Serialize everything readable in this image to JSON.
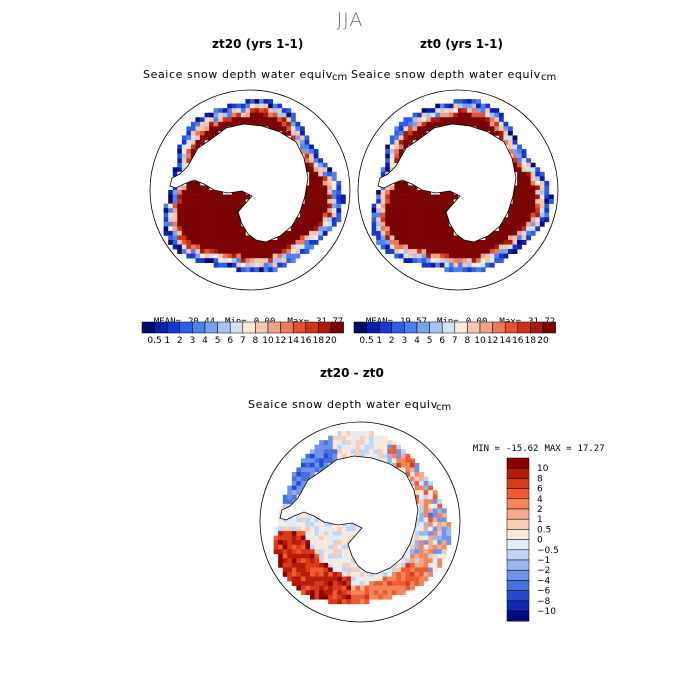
{
  "figure": {
    "season": "JJA"
  },
  "panels": [
    {
      "title": "zt20 (yrs 1-1)",
      "variable": "Seaice snow depth water equiv",
      "units": "cm",
      "stats": {
        "mean_label": "MEAN=",
        "mean": "20.44",
        "min_label": "Min=",
        "min": "0.00",
        "max_label": "Max=",
        "max": "31.77"
      }
    },
    {
      "title": "zt0 (yrs 1-1)",
      "variable": "Seaice snow depth water equiv",
      "units": "cm",
      "stats": {
        "mean_label": "MEAN=",
        "mean": "19.57",
        "min_label": "Min=",
        "min": "0.00",
        "max_label": "Max=",
        "max": "31.72"
      }
    },
    {
      "title": "zt20 - zt0",
      "variable": "Seaice snow depth water equiv",
      "units": "cm",
      "stats": {
        "min_label": "MIN =",
        "min": "-15.62",
        "max_label": "MAX =",
        "max": "17.27"
      }
    }
  ],
  "chart_data": [
    {
      "type": "heatmap",
      "projection": "south polar stereographic",
      "title": "zt20 (yrs 1-1)",
      "colorbar_levels": [
        "0.5",
        "1",
        "2",
        "3",
        "4",
        "5",
        "6",
        "7",
        "8",
        "10",
        "12",
        "14",
        "16",
        "18",
        "20"
      ],
      "colorbar_colors": [
        "#050b6e",
        "#0a1fa8",
        "#1838d4",
        "#2d5ee6",
        "#4f80ec",
        "#7aa1f0",
        "#a8c4f4",
        "#d4e2f8",
        "#faebdc",
        "#f6c7ae",
        "#f2a184",
        "#ec7a5c",
        "#e3522f",
        "#cc3418",
        "#a71d0c",
        "#7a0404"
      ],
      "mean": 20.44,
      "min": 0.0,
      "max": 31.77
    },
    {
      "type": "heatmap",
      "projection": "south polar stereographic",
      "title": "zt0 (yrs 1-1)",
      "colorbar_levels": [
        "0.5",
        "1",
        "2",
        "3",
        "4",
        "5",
        "6",
        "7",
        "8",
        "10",
        "12",
        "14",
        "16",
        "18",
        "20"
      ],
      "colorbar_colors": [
        "#050b6e",
        "#0a1fa8",
        "#1838d4",
        "#2d5ee6",
        "#4f80ec",
        "#7aa1f0",
        "#a8c4f4",
        "#d4e2f8",
        "#faebdc",
        "#f6c7ae",
        "#f2a184",
        "#ec7a5c",
        "#e3522f",
        "#cc3418",
        "#a71d0c",
        "#7a0404"
      ],
      "mean": 19.57,
      "min": 0.0,
      "max": 31.72
    },
    {
      "type": "heatmap",
      "projection": "south polar stereographic",
      "title": "zt20 - zt0",
      "colorbar_levels": [
        "10",
        "8",
        "6",
        "4",
        "2",
        "1",
        "0.5",
        "0",
        "−0.5",
        "−1",
        "−2",
        "−4",
        "−6",
        "−8",
        "−10"
      ],
      "colorbar_colors": [
        "#8b0000",
        "#b51c0a",
        "#d93a18",
        "#ee5b30",
        "#f4865c",
        "#f7ab8a",
        "#f9ccb4",
        "#fbe9dc",
        "#e3edf9",
        "#c0d5f5",
        "#98b7ef",
        "#6f93e8",
        "#4670de",
        "#254cd0",
        "#1028b0",
        "#000a80"
      ],
      "min": -15.62,
      "max": 17.27
    }
  ]
}
